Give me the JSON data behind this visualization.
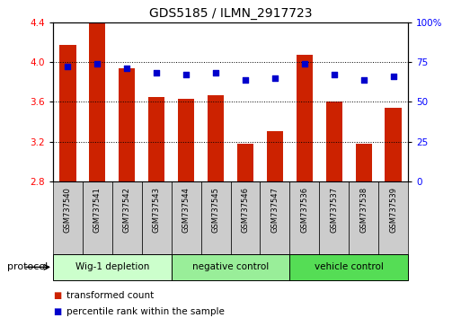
{
  "title": "GDS5185 / ILMN_2917723",
  "samples": [
    "GSM737540",
    "GSM737541",
    "GSM737542",
    "GSM737543",
    "GSM737544",
    "GSM737545",
    "GSM737546",
    "GSM737547",
    "GSM737536",
    "GSM737537",
    "GSM737538",
    "GSM737539"
  ],
  "bar_values": [
    4.17,
    4.42,
    3.94,
    3.65,
    3.63,
    3.67,
    3.18,
    3.3,
    4.07,
    3.6,
    3.18,
    3.54
  ],
  "dot_values": [
    72,
    74,
    71,
    68,
    67,
    68,
    64,
    65,
    74,
    67,
    64,
    66
  ],
  "bar_color": "#cc2200",
  "dot_color": "#0000cc",
  "ylim": [
    2.8,
    4.4
  ],
  "yticks": [
    2.8,
    3.2,
    3.6,
    4.0,
    4.4
  ],
  "yticks_right": [
    0,
    25,
    50,
    75,
    100
  ],
  "groups": [
    {
      "label": "Wig-1 depletion",
      "start": 0,
      "end": 4,
      "color": "#ccffcc"
    },
    {
      "label": "negative control",
      "start": 4,
      "end": 8,
      "color": "#99ee99"
    },
    {
      "label": "vehicle control",
      "start": 8,
      "end": 12,
      "color": "#55dd55"
    }
  ],
  "protocol_label": "protocol",
  "legend_bar_label": "transformed count",
  "legend_dot_label": "percentile rank within the sample",
  "bar_width": 0.55
}
